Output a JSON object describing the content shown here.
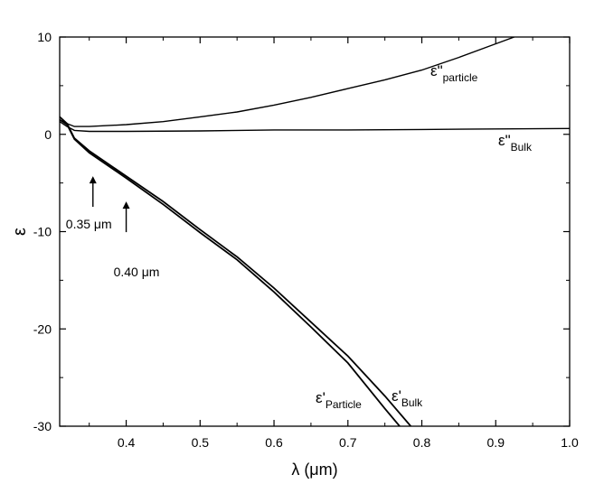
{
  "chart_data": {
    "type": "line",
    "xlabel": "λ (μm)",
    "ylabel": "ε",
    "xlim": [
      0.31,
      1.0
    ],
    "ylim": [
      -30,
      10
    ],
    "x_ticks": [
      0.4,
      0.5,
      0.6,
      0.7,
      0.8,
      0.9,
      1.0
    ],
    "x_tick_labels": [
      "0.4",
      "0.5",
      "0.6",
      "0.7",
      "0.8",
      "0.9",
      "1.0"
    ],
    "y_ticks": [
      10,
      0,
      -10,
      -20,
      -30
    ],
    "y_tick_labels": [
      "10",
      "0",
      "-10",
      "-20",
      "-30"
    ],
    "grid": false,
    "series": [
      {
        "name": "ε\"particle",
        "x": [
          0.31,
          0.32,
          0.33,
          0.35,
          0.4,
          0.45,
          0.5,
          0.55,
          0.6,
          0.65,
          0.7,
          0.75,
          0.8,
          0.85,
          0.9,
          0.925
        ],
        "y": [
          1.5,
          1.1,
          0.8,
          0.8,
          1.0,
          1.3,
          1.8,
          2.3,
          3.0,
          3.8,
          4.7,
          5.6,
          6.6,
          7.9,
          9.3,
          10.0
        ]
      },
      {
        "name": "ε\"Bulk",
        "x": [
          0.31,
          0.32,
          0.33,
          0.35,
          0.4,
          0.5,
          0.6,
          0.7,
          0.8,
          0.9,
          1.0
        ],
        "y": [
          1.3,
          0.8,
          0.4,
          0.3,
          0.3,
          0.35,
          0.45,
          0.45,
          0.5,
          0.55,
          0.6
        ]
      },
      {
        "name": "ε'Particle",
        "x": [
          0.31,
          0.32,
          0.33,
          0.35,
          0.4,
          0.45,
          0.5,
          0.55,
          0.6,
          0.65,
          0.7,
          0.75,
          0.77
        ],
        "y": [
          1.5,
          1.0,
          -0.5,
          -1.9,
          -4.5,
          -7.2,
          -10.1,
          -12.9,
          -16.2,
          -19.8,
          -23.5,
          -28.2,
          -30.0
        ]
      },
      {
        "name": "ε'Bulk",
        "x": [
          0.31,
          0.32,
          0.33,
          0.35,
          0.4,
          0.45,
          0.5,
          0.55,
          0.6,
          0.65,
          0.7,
          0.75,
          0.785
        ],
        "y": [
          1.8,
          1.1,
          -0.4,
          -1.7,
          -4.3,
          -6.9,
          -9.8,
          -12.6,
          -15.8,
          -19.3,
          -22.8,
          -26.9,
          -30.0
        ]
      }
    ],
    "annotations": [
      {
        "text": "0.35 μm",
        "x": 0.355,
        "y": -1.7
      },
      {
        "text": "0.40 μm",
        "x": 0.4,
        "y": -4.3
      }
    ]
  }
}
